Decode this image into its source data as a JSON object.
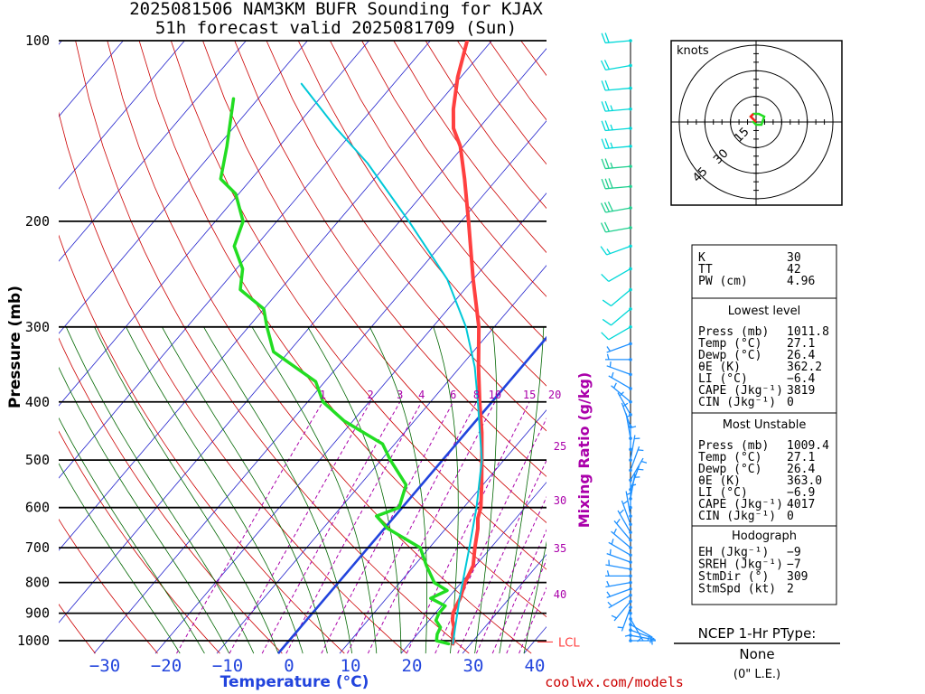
{
  "header": {
    "title_line1": "2025081506 NAM3KM BUFR Sounding for KJAX",
    "title_line2": "51h forecast valid 2025081709 (Sun)"
  },
  "footer": {
    "credit": "coolwx.com/models"
  },
  "chart_data": [
    {
      "type": "skew-t",
      "xlabel": "Temperature (°C)",
      "ylabel": "Pressure (mb)",
      "pressure_axis": {
        "log_scale": true,
        "ylim": [
          1050,
          100
        ],
        "ticks": [
          100,
          200,
          300,
          400,
          500,
          600,
          700,
          800,
          900,
          1000
        ]
      },
      "temperature_axis": {
        "ticks": [
          -30,
          -20,
          -10,
          0,
          10,
          20,
          30,
          40
        ]
      },
      "mixing_ratio": {
        "label": "Mixing Ratio (g/kg)",
        "top_labels": [
          "1",
          "2",
          "3",
          "4",
          "6",
          "8",
          "10",
          "15",
          "20"
        ],
        "side_labels": [
          "25",
          "30",
          "35",
          "40"
        ]
      },
      "lcl_label": "LCL",
      "series": [
        {
          "color": "#ff4040",
          "points": [
            [
              1011.8,
              27.1
            ],
            [
              1000,
              26.8
            ],
            [
              975,
              25.7
            ],
            [
              950,
              25.0
            ],
            [
              925,
              23.8
            ],
            [
              900,
              22.9
            ],
            [
              875,
              22.4
            ],
            [
              850,
              22.0
            ],
            [
              800,
              20.6
            ],
            [
              750,
              19.6
            ],
            [
              700,
              17.4
            ],
            [
              650,
              15.2
            ],
            [
              625,
              13.8
            ],
            [
              600,
              12.8
            ],
            [
              550,
              9.8
            ],
            [
              500,
              6.4
            ],
            [
              450,
              2.6
            ],
            [
              400,
              -2.0
            ],
            [
              350,
              -7.0
            ],
            [
              300,
              -12.5
            ],
            [
              250,
              -20.0
            ],
            [
              200,
              -28.8
            ],
            [
              170,
              -35.3
            ],
            [
              150,
              -40.5
            ],
            [
              140,
              -44.1
            ],
            [
              130,
              -46.8
            ],
            [
              115,
              -50.5
            ],
            [
              100,
              -54.0
            ]
          ]
        },
        {
          "color": "#22dd22",
          "points": [
            [
              1011.8,
              26.4
            ],
            [
              1000,
              24.0
            ],
            [
              975,
              23.2
            ],
            [
              950,
              22.8
            ],
            [
              925,
              21.1
            ],
            [
              900,
              20.6
            ],
            [
              875,
              20.6
            ],
            [
              850,
              17.2
            ],
            [
              825,
              18.8
            ],
            [
              800,
              15.6
            ],
            [
              750,
              12.0
            ],
            [
              700,
              8.5
            ],
            [
              650,
              0.5
            ],
            [
              620,
              -3.0
            ],
            [
              600,
              -0.5
            ],
            [
              550,
              -2.5
            ],
            [
              500,
              -8.5
            ],
            [
              470,
              -12.0
            ],
            [
              430,
              -21.5
            ],
            [
              400,
              -27.5
            ],
            [
              370,
              -31.5
            ],
            [
              330,
              -42.5
            ],
            [
              300,
              -47.0
            ],
            [
              280,
              -50.0
            ],
            [
              260,
              -56.5
            ],
            [
              240,
              -59.0
            ],
            [
              220,
              -63.5
            ],
            [
              200,
              -65.5
            ],
            [
              180,
              -70.5
            ],
            [
              170,
              -75.0
            ],
            [
              150,
              -78.5
            ],
            [
              125,
              -84.0
            ]
          ]
        },
        {
          "color": "#00c8d8",
          "points": [
            [
              1011.8,
              27.1
            ],
            [
              950,
              25.2
            ],
            [
              900,
              23.6
            ],
            [
              850,
              21.9
            ],
            [
              800,
              20.2
            ],
            [
              700,
              16.5
            ],
            [
              600,
              12.1
            ],
            [
              500,
              6.4
            ],
            [
              400,
              -2.3
            ],
            [
              350,
              -7.6
            ],
            [
              300,
              -14.6
            ],
            [
              250,
              -24.2
            ],
            [
              200,
              -38.5
            ],
            [
              160,
              -53.3
            ],
            [
              140,
              -63.2
            ],
            [
              118,
              -75.0
            ]
          ]
        }
      ],
      "wind_barbs": [
        {
          "p": 1000,
          "dir": 90,
          "kt": 2
        },
        {
          "p": 980,
          "dir": 100,
          "kt": 3
        },
        {
          "p": 960,
          "dir": 110,
          "kt": 3
        },
        {
          "p": 940,
          "dir": 120,
          "kt": 4
        },
        {
          "p": 920,
          "dir": 150,
          "kt": 4
        },
        {
          "p": 900,
          "dir": 180,
          "kt": 3
        },
        {
          "p": 880,
          "dir": 200,
          "kt": 4
        },
        {
          "p": 860,
          "dir": 220,
          "kt": 5
        },
        {
          "p": 840,
          "dir": 240,
          "kt": 5
        },
        {
          "p": 820,
          "dir": 250,
          "kt": 5
        },
        {
          "p": 800,
          "dir": 260,
          "kt": 5
        },
        {
          "p": 780,
          "dir": 270,
          "kt": 5
        },
        {
          "p": 760,
          "dir": 280,
          "kt": 5
        },
        {
          "p": 740,
          "dir": 290,
          "kt": 5
        },
        {
          "p": 720,
          "dir": 300,
          "kt": 5
        },
        {
          "p": 700,
          "dir": 310,
          "kt": 5
        },
        {
          "p": 680,
          "dir": 320,
          "kt": 5
        },
        {
          "p": 660,
          "dir": 330,
          "kt": 5
        },
        {
          "p": 640,
          "dir": 340,
          "kt": 5
        },
        {
          "p": 620,
          "dir": 350,
          "kt": 5
        },
        {
          "p": 600,
          "dir": 0,
          "kt": 5
        },
        {
          "p": 580,
          "dir": 10,
          "kt": 5
        },
        {
          "p": 560,
          "dir": 20,
          "kt": 5
        },
        {
          "p": 540,
          "dir": 30,
          "kt": 5
        },
        {
          "p": 520,
          "dir": 20,
          "kt": 5
        },
        {
          "p": 500,
          "dir": 10,
          "kt": 5
        },
        {
          "p": 480,
          "dir": 0,
          "kt": 5
        },
        {
          "p": 460,
          "dir": 350,
          "kt": 5
        },
        {
          "p": 440,
          "dir": 340,
          "kt": 5
        },
        {
          "p": 420,
          "dir": 330,
          "kt": 5
        },
        {
          "p": 400,
          "dir": 310,
          "kt": 5
        },
        {
          "p": 380,
          "dir": 300,
          "kt": 5
        },
        {
          "p": 360,
          "dir": 290,
          "kt": 5
        },
        {
          "p": 340,
          "dir": 270,
          "kt": 5
        },
        {
          "p": 320,
          "dir": 250,
          "kt": 5
        },
        {
          "p": 300,
          "dir": 240,
          "kt": 10
        },
        {
          "p": 280,
          "dir": 230,
          "kt": 10
        },
        {
          "p": 260,
          "dir": 230,
          "kt": 10
        },
        {
          "p": 240,
          "dir": 240,
          "kt": 10
        },
        {
          "p": 220,
          "dir": 250,
          "kt": 15
        },
        {
          "p": 205,
          "dir": 260,
          "kt": 20
        },
        {
          "p": 190,
          "dir": 260,
          "kt": 30
        },
        {
          "p": 175,
          "dir": 265,
          "kt": 30
        },
        {
          "p": 162,
          "dir": 265,
          "kt": 25
        },
        {
          "p": 150,
          "dir": 265,
          "kt": 25
        },
        {
          "p": 140,
          "dir": 265,
          "kt": 25
        },
        {
          "p": 130,
          "dir": 265,
          "kt": 25
        },
        {
          "p": 120,
          "dir": 265,
          "kt": 20
        },
        {
          "p": 110,
          "dir": 260,
          "kt": 20
        },
        {
          "p": 100,
          "dir": 265,
          "kt": 20
        }
      ]
    },
    {
      "type": "hodograph",
      "units_label": "knots",
      "ring_labels": [
        "15",
        "30",
        "45"
      ],
      "trace": [
        [
          0,
          0
        ],
        [
          -1,
          1
        ],
        [
          -2,
          2
        ],
        [
          -1,
          3
        ],
        [
          1,
          3
        ],
        [
          3,
          2
        ],
        [
          2,
          -1
        ],
        [
          0,
          -1
        ],
        [
          -1,
          0
        ],
        [
          0,
          0.5
        ]
      ]
    }
  ],
  "indices": {
    "summary": [
      {
        "label": "K",
        "value": "30"
      },
      {
        "label": "TT",
        "value": "42"
      },
      {
        "label": "PW (cm)",
        "value": "4.96"
      }
    ],
    "lowest_level": {
      "title": "Lowest level",
      "rows": [
        {
          "label": "Press (mb)",
          "value": "1011.8"
        },
        {
          "label": "Temp (°C)",
          "value": "27.1"
        },
        {
          "label": "Dewp (°C)",
          "value": "26.4"
        },
        {
          "label": "θE (K)",
          "value": "362.2"
        },
        {
          "label": "LI (°C)",
          "value": "−6.4"
        },
        {
          "label": "CAPE (Jkg⁻¹)",
          "value": "3819"
        },
        {
          "label": "CIN (Jkg⁻¹)",
          "value": "0"
        }
      ]
    },
    "most_unstable": {
      "title": "Most Unstable",
      "rows": [
        {
          "label": "Press (mb)",
          "value": "1009.4"
        },
        {
          "label": "Temp (°C)",
          "value": "27.1"
        },
        {
          "label": "Dewp (°C)",
          "value": "26.4"
        },
        {
          "label": "θE (K)",
          "value": "363.0"
        },
        {
          "label": "LI (°C)",
          "value": "−6.9"
        },
        {
          "label": "CAPE (Jkg⁻¹)",
          "value": "4017"
        },
        {
          "label": "CIN (Jkg⁻¹)",
          "value": "0"
        }
      ]
    },
    "hodograph_box": {
      "title": "Hodograph",
      "rows": [
        {
          "label": "EH (Jkg⁻¹)",
          "value": "−9"
        },
        {
          "label": "SREH (Jkg⁻¹)",
          "value": "−7"
        },
        {
          "label": "StmDir (°)",
          "value": "309"
        },
        {
          "label": "StmSpd (kt)",
          "value": "2"
        }
      ]
    }
  },
  "ptype": {
    "title": "NCEP 1-Hr PType:",
    "value": "None",
    "amount": "(0\" L.E.)"
  },
  "colors": {
    "temp": "#ff4040",
    "dewp": "#22dd22",
    "parcel": "#00c8d8",
    "isotherm": "#2222cc",
    "dry_adiabat": "#cc0000",
    "moist_adiabat": "#006600",
    "mixing_ratio": "#aa00aa",
    "freezing": "#2244dd",
    "wind_low": "#1e90ff",
    "wind_high": "#00d8d8",
    "wind_mid": "#20d090"
  }
}
